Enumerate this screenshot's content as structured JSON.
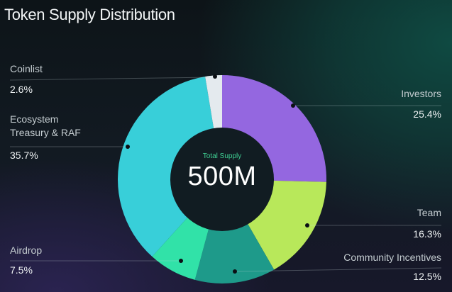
{
  "title": "Token Supply Distribution",
  "center": {
    "label": "Total Supply",
    "value": "500M"
  },
  "chart_data": {
    "type": "pie",
    "subtype": "donut",
    "title": "Token Supply Distribution",
    "center_label": "Total Supply",
    "center_value": "500M",
    "start_angle": "12 o'clock, clockwise",
    "categories": [
      "Investors",
      "Team",
      "Community Incentives",
      "Airdrop",
      "Ecosystem Treasury & RAF",
      "Coinlist"
    ],
    "values": [
      25.4,
      16.3,
      12.5,
      7.5,
      35.7,
      2.6
    ],
    "value_labels": [
      "25.4%",
      "16.3%",
      "12.5%",
      "7.5%",
      "35.7%",
      "2.6%"
    ],
    "colors": [
      "#9467e0",
      "#b8e85a",
      "#1e9a8a",
      "#31e2a8",
      "#38cfd9",
      "#e4eaee"
    ],
    "legend_position": "callout labels around chart"
  },
  "labels": {
    "coinlist": {
      "name": "Coinlist",
      "pct": "2.6%"
    },
    "ecosystem": {
      "name_line1": "Ecosystem",
      "name_line2": "Treasury & RAF",
      "pct": "35.7%"
    },
    "airdrop": {
      "name": "Airdrop",
      "pct": "7.5%"
    },
    "investors": {
      "name": "Investors",
      "pct": "25.4%"
    },
    "team": {
      "name": "Team",
      "pct": "16.3%"
    },
    "community": {
      "name": "Community Incentives",
      "pct": "12.5%"
    }
  }
}
